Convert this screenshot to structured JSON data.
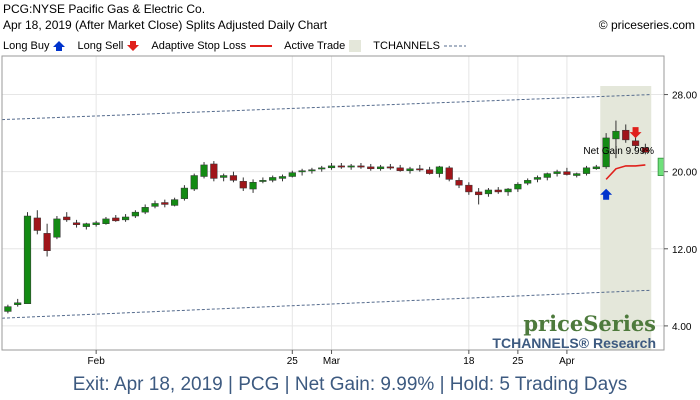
{
  "header": {
    "title": "PCG:NYSE Pacific Gas & Electric Co.",
    "subtitle": "Apr 18, 2019 (After Market Close)  Splits Adjusted Daily Chart",
    "copyright": "© priceseries.com"
  },
  "legend": {
    "items": [
      {
        "label": "Long Buy",
        "icon": "blue-up-arrow-icon",
        "color": "#0033cc"
      },
      {
        "label": "Long Sell",
        "icon": "red-down-arrow-icon",
        "color": "#e0201b"
      },
      {
        "label": "Adaptive Stop Loss",
        "icon": "red-line-icon",
        "color": "#e0201b"
      },
      {
        "label": "Active Trade",
        "icon": "shaded-box-icon",
        "color": "#e4e7da"
      },
      {
        "label": "TCHANNELS",
        "icon": "dashed-line-icon",
        "color": "#556b8d"
      }
    ]
  },
  "chart_data": {
    "type": "candlestick",
    "y_tick_labels": [
      "28.00",
      "20.00",
      "12.00",
      "4.00"
    ],
    "y_ticks": [
      28,
      20,
      12,
      4
    ],
    "ylim": [
      1.5,
      32
    ],
    "x_tick_labels": [
      "Feb",
      "25",
      "Mar",
      "18",
      "25",
      "Apr",
      "15"
    ],
    "x_tick_index": [
      9,
      29,
      33,
      47,
      52,
      57,
      72
    ],
    "candles": [
      {
        "o": 5.5,
        "h": 6.2,
        "l": 5.3,
        "c": 6.0
      },
      {
        "o": 6.2,
        "h": 6.8,
        "l": 6.0,
        "c": 6.4
      },
      {
        "o": 6.3,
        "h": 15.8,
        "l": 6.3,
        "c": 15.4
      },
      {
        "o": 15.2,
        "h": 16.0,
        "l": 13.5,
        "c": 13.9
      },
      {
        "o": 13.6,
        "h": 14.6,
        "l": 11.2,
        "c": 11.8
      },
      {
        "o": 13.2,
        "h": 15.4,
        "l": 13.0,
        "c": 15.1
      },
      {
        "o": 15.3,
        "h": 15.8,
        "l": 14.8,
        "c": 15.0
      },
      {
        "o": 14.7,
        "h": 15.0,
        "l": 14.2,
        "c": 14.5
      },
      {
        "o": 14.3,
        "h": 14.7,
        "l": 14.0,
        "c": 14.6
      },
      {
        "o": 14.5,
        "h": 14.9,
        "l": 14.3,
        "c": 14.7
      },
      {
        "o": 14.6,
        "h": 15.3,
        "l": 14.5,
        "c": 15.1
      },
      {
        "o": 15.2,
        "h": 15.5,
        "l": 14.8,
        "c": 14.9
      },
      {
        "o": 15.0,
        "h": 15.6,
        "l": 14.8,
        "c": 15.3
      },
      {
        "o": 15.4,
        "h": 16.0,
        "l": 15.2,
        "c": 15.8
      },
      {
        "o": 15.8,
        "h": 16.6,
        "l": 15.6,
        "c": 16.3
      },
      {
        "o": 16.4,
        "h": 17.0,
        "l": 16.2,
        "c": 16.7
      },
      {
        "o": 16.8,
        "h": 17.1,
        "l": 16.3,
        "c": 16.6
      },
      {
        "o": 16.5,
        "h": 17.3,
        "l": 16.4,
        "c": 17.1
      },
      {
        "o": 17.2,
        "h": 18.6,
        "l": 17.0,
        "c": 18.3
      },
      {
        "o": 18.2,
        "h": 19.8,
        "l": 18.0,
        "c": 19.6
      },
      {
        "o": 19.5,
        "h": 21.0,
        "l": 19.3,
        "c": 20.7
      },
      {
        "o": 20.8,
        "h": 21.1,
        "l": 19.0,
        "c": 19.3
      },
      {
        "o": 19.4,
        "h": 19.8,
        "l": 19.0,
        "c": 19.6
      },
      {
        "o": 19.6,
        "h": 20.0,
        "l": 18.9,
        "c": 19.1
      },
      {
        "o": 19.0,
        "h": 19.4,
        "l": 18.0,
        "c": 18.3
      },
      {
        "o": 18.2,
        "h": 19.2,
        "l": 17.8,
        "c": 18.9
      },
      {
        "o": 19.0,
        "h": 19.4,
        "l": 18.8,
        "c": 19.1
      },
      {
        "o": 19.1,
        "h": 19.6,
        "l": 18.9,
        "c": 19.4
      },
      {
        "o": 19.3,
        "h": 19.7,
        "l": 19.0,
        "c": 19.5
      },
      {
        "o": 19.5,
        "h": 20.1,
        "l": 19.4,
        "c": 19.9
      },
      {
        "o": 20.0,
        "h": 20.3,
        "l": 19.6,
        "c": 20.1
      },
      {
        "o": 20.1,
        "h": 20.4,
        "l": 19.8,
        "c": 20.2
      },
      {
        "o": 20.3,
        "h": 20.6,
        "l": 20.0,
        "c": 20.4
      },
      {
        "o": 20.4,
        "h": 20.9,
        "l": 20.2,
        "c": 20.6
      },
      {
        "o": 20.6,
        "h": 20.9,
        "l": 20.3,
        "c": 20.5
      },
      {
        "o": 20.5,
        "h": 20.8,
        "l": 20.2,
        "c": 20.6
      },
      {
        "o": 20.6,
        "h": 20.9,
        "l": 20.3,
        "c": 20.5
      },
      {
        "o": 20.5,
        "h": 20.8,
        "l": 20.1,
        "c": 20.3
      },
      {
        "o": 20.3,
        "h": 20.7,
        "l": 20.1,
        "c": 20.5
      },
      {
        "o": 20.5,
        "h": 20.8,
        "l": 20.2,
        "c": 20.4
      },
      {
        "o": 20.4,
        "h": 20.7,
        "l": 20.0,
        "c": 20.1
      },
      {
        "o": 20.1,
        "h": 20.5,
        "l": 19.8,
        "c": 20.3
      },
      {
        "o": 20.3,
        "h": 20.7,
        "l": 20.0,
        "c": 20.2
      },
      {
        "o": 20.2,
        "h": 20.5,
        "l": 19.7,
        "c": 19.8
      },
      {
        "o": 19.8,
        "h": 20.6,
        "l": 19.4,
        "c": 20.5
      },
      {
        "o": 20.4,
        "h": 20.6,
        "l": 19.0,
        "c": 19.2
      },
      {
        "o": 19.1,
        "h": 19.4,
        "l": 18.3,
        "c": 18.6
      },
      {
        "o": 18.6,
        "h": 18.9,
        "l": 17.6,
        "c": 17.9
      },
      {
        "o": 17.9,
        "h": 18.3,
        "l": 16.6,
        "c": 17.6
      },
      {
        "o": 17.7,
        "h": 18.3,
        "l": 17.4,
        "c": 18.1
      },
      {
        "o": 18.1,
        "h": 18.4,
        "l": 17.7,
        "c": 17.9
      },
      {
        "o": 17.9,
        "h": 18.3,
        "l": 17.5,
        "c": 18.2
      },
      {
        "o": 18.2,
        "h": 18.9,
        "l": 17.9,
        "c": 18.7
      },
      {
        "o": 18.8,
        "h": 19.3,
        "l": 18.6,
        "c": 19.1
      },
      {
        "o": 19.2,
        "h": 19.6,
        "l": 18.9,
        "c": 19.4
      },
      {
        "o": 19.4,
        "h": 19.9,
        "l": 19.1,
        "c": 19.8
      },
      {
        "o": 19.8,
        "h": 20.2,
        "l": 19.5,
        "c": 20.0
      },
      {
        "o": 20.0,
        "h": 20.4,
        "l": 19.6,
        "c": 19.7
      },
      {
        "o": 19.6,
        "h": 19.9,
        "l": 19.4,
        "c": 19.8
      },
      {
        "o": 19.8,
        "h": 20.6,
        "l": 19.6,
        "c": 20.4
      },
      {
        "o": 20.3,
        "h": 20.7,
        "l": 20.2,
        "c": 20.5
      },
      {
        "o": 20.5,
        "h": 24.0,
        "l": 20.3,
        "c": 23.5
      },
      {
        "o": 23.4,
        "h": 25.3,
        "l": 21.4,
        "c": 24.2
      },
      {
        "o": 24.3,
        "h": 24.9,
        "l": 23.0,
        "c": 23.3
      },
      {
        "o": 23.2,
        "h": 23.8,
        "l": 22.3,
        "c": 22.7
      },
      {
        "o": 22.5,
        "h": 22.9,
        "l": 21.8,
        "c": 22.0
      }
    ],
    "trade_window_start": 61,
    "trade_window_end": 65,
    "channel_upper": [
      25.4,
      28.0
    ],
    "channel_lower": [
      4.8,
      7.7
    ],
    "stop_loss": {
      "x": [
        61,
        62,
        63,
        64,
        65
      ],
      "y": [
        19.2,
        20.3,
        20.6,
        20.6,
        20.7
      ]
    },
    "buy_signal": {
      "index": 61,
      "price": 17.6
    },
    "sell_signal": {
      "index": 64,
      "price": 24.1
    },
    "net_gain_box": {
      "y0": 19.6,
      "y1": 21.4,
      "label": "Net Gain 9.99%"
    },
    "grid": true,
    "colors": {
      "up": "#138a13",
      "down": "#a0151a",
      "channel": "#556b8d",
      "stop": "#e0201b",
      "gain": "#6ee07a",
      "shade": "#e4e7da"
    }
  },
  "branding": {
    "logo": "priceSeries",
    "tagline": "TCHANNELS® Research"
  },
  "footer": {
    "summary": "Exit: Apr 18, 2019 | PCG | Net Gain: 9.99% | Hold: 5 Trading Days"
  }
}
